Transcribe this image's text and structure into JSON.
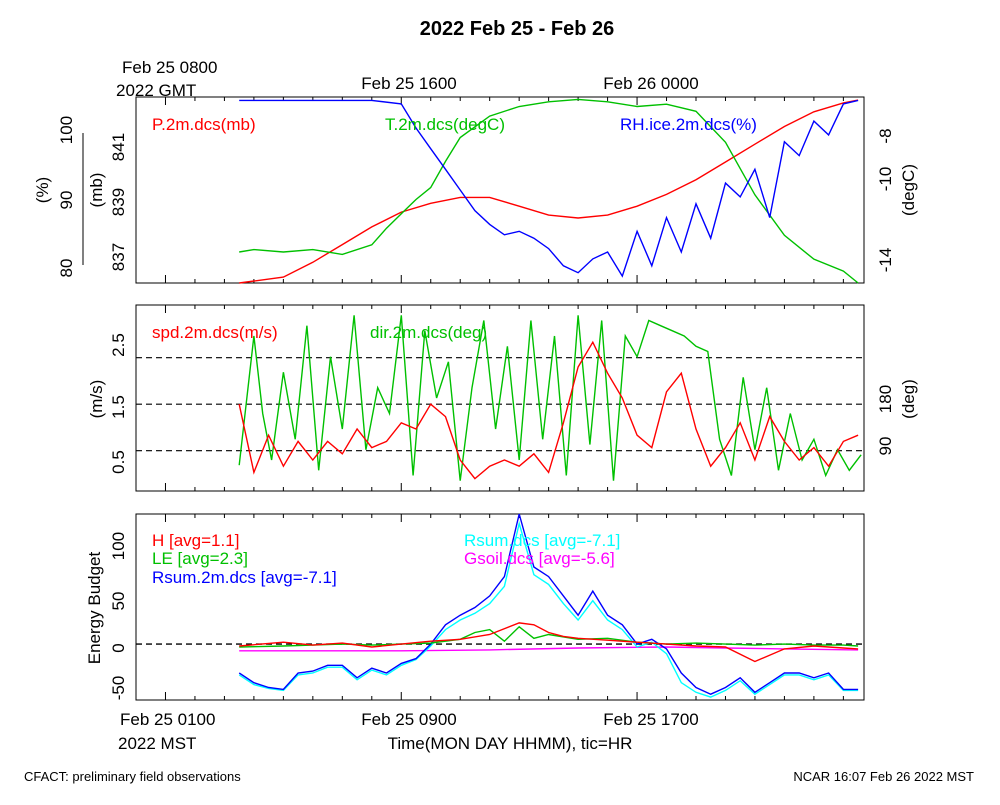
{
  "title": "2022 Feb 25 - Feb 26",
  "footer_left": "CFACT: preliminary field observations",
  "footer_right": "NCAR 16:07 Feb 26 2022 MST",
  "top_axis": {
    "first_label_line1": "Feb 25 0800",
    "first_label_line2": "2022 GMT",
    "labels": [
      "Feb 25 1600",
      "Feb 26 0000"
    ]
  },
  "bottom_axis": {
    "first_label_line1": "Feb 25 0100",
    "first_label_line2": "2022 MST",
    "labels": [
      "Feb 25 0900",
      "Feb 25 1700"
    ],
    "xlabel": "Time(MON DAY HHMM), tic=HR"
  },
  "colors": {
    "red": "#ff0000",
    "green": "#00c000",
    "blue": "#0000ff",
    "cyan": "#00ffff",
    "magenta": "#ff00ff",
    "black": "#000000"
  },
  "chart_data": [
    {
      "type": "line",
      "title": "",
      "x_unit": "hours since Feb 25 0000 MST",
      "xlim": [
        0,
        24.7
      ],
      "left_labels": {
        "pct": "(%)",
        "mb": "(mb)"
      },
      "right_label": "(degC)",
      "pct_ticks": [
        "100",
        "90",
        "80"
      ],
      "mb_ticks": [
        "841",
        "839",
        "837"
      ],
      "degc_ticks": [
        "-8",
        "-10",
        "-14"
      ],
      "ylim_pressure_mb": [
        836.5,
        842.8
      ],
      "ylim_temp_degC": [
        -14.5,
        -6.7
      ],
      "ylim_rh_pct": [
        79.5,
        106.5
      ],
      "series": [
        {
          "name": "P.2m.dcs(mb)",
          "color": "red",
          "x": [
            3.5,
            5,
            6,
            7,
            8,
            9,
            10,
            11,
            12,
            13,
            14,
            15,
            16,
            17,
            18,
            19,
            20,
            21,
            22,
            23,
            24,
            24.5
          ],
          "y": [
            836.4,
            836.7,
            837.2,
            837.8,
            838.4,
            838.9,
            839.2,
            839.4,
            839.4,
            839.1,
            838.8,
            838.7,
            838.8,
            839.1,
            839.5,
            840.0,
            840.6,
            841.2,
            841.8,
            842.3,
            842.6,
            842.7
          ]
        },
        {
          "name": "T.2m.dcs(degC)",
          "color": "green",
          "x": [
            3.5,
            4,
            5,
            6,
            7,
            8,
            8.5,
            9,
            9.5,
            10,
            10.5,
            11,
            12,
            13,
            14,
            15,
            16,
            17,
            18,
            19,
            20,
            21,
            22,
            23,
            24,
            24.5
          ],
          "y": [
            -13.2,
            -13.1,
            -13.2,
            -13.1,
            -13.3,
            -12.9,
            -12.2,
            -11.6,
            -11.0,
            -10.5,
            -9.4,
            -8.4,
            -7.5,
            -7.1,
            -6.9,
            -6.8,
            -6.9,
            -7.1,
            -7.0,
            -7.3,
            -8.6,
            -10.8,
            -12.5,
            -13.5,
            -14.0,
            -14.5
          ]
        },
        {
          "name": "RH.ice.2m.dcs(%)",
          "color": "blue",
          "x": [
            3.5,
            5,
            6,
            7,
            8,
            9,
            9.5,
            10,
            10.5,
            11,
            11.5,
            12,
            12.5,
            13,
            13.5,
            14,
            14.5,
            15,
            15.5,
            16,
            16.5,
            17,
            17.5,
            18,
            18.5,
            19,
            19.5,
            20,
            20.5,
            21,
            21.5,
            22,
            22.5,
            23,
            23.5,
            24,
            24.5
          ],
          "y": [
            106,
            106,
            106,
            106,
            106,
            105.5,
            102,
            99,
            96,
            93,
            90,
            88,
            86.5,
            87,
            86,
            84.5,
            82,
            81,
            83,
            84,
            80.5,
            87,
            82,
            89,
            84,
            91,
            86,
            94,
            92,
            96,
            89,
            100,
            98,
            103,
            101,
            105.5,
            106
          ]
        }
      ]
    },
    {
      "type": "line",
      "title": "",
      "x_unit": "hours since Feb 25 0000 MST",
      "xlim": [
        0,
        24.7
      ],
      "left_label": "(m/s)",
      "right_label": "(deg)",
      "speed_ticks": [
        "2.5",
        "1.5",
        "0.5"
      ],
      "dir_ticks": [
        "180",
        "90"
      ],
      "ylim_speed_ms": [
        0.1,
        3.1
      ],
      "ylim_dir_deg": [
        0,
        360
      ],
      "dashed_lines_speed_ms": [
        2.25,
        1.5,
        0.75
      ],
      "series": [
        {
          "name": "spd.2m.dcs(m/s)",
          "color": "red",
          "x": [
            3.5,
            4,
            4.5,
            5,
            5.5,
            6,
            6.5,
            7,
            7.5,
            8,
            8.5,
            9,
            9.5,
            10,
            10.5,
            11,
            11.5,
            12,
            12.5,
            13,
            13.5,
            14,
            14.5,
            15,
            15.5,
            16,
            16.5,
            17,
            17.5,
            18,
            18.5,
            19,
            19.5,
            20,
            20.5,
            21,
            21.5,
            22,
            22.5,
            23,
            23.5,
            24,
            24.5
          ],
          "y": [
            1.5,
            0.4,
            1.0,
            0.5,
            0.9,
            0.6,
            0.9,
            0.7,
            1.1,
            0.8,
            0.9,
            1.2,
            1.1,
            1.5,
            1.3,
            0.6,
            0.3,
            0.5,
            0.6,
            0.5,
            0.7,
            0.4,
            1.2,
            2.1,
            2.5,
            2.0,
            1.6,
            1.0,
            0.8,
            1.7,
            2.0,
            1.1,
            0.5,
            0.8,
            1.2,
            0.6,
            1.3,
            0.9,
            0.6,
            0.8,
            0.5,
            0.9,
            1.0
          ]
        },
        {
          "name": "dir.2m.dcs(deg)",
          "color": "green",
          "x": [
            3.5,
            4,
            4.3,
            4.6,
            5,
            5.4,
            5.8,
            6.2,
            6.6,
            7,
            7.4,
            7.8,
            8.2,
            8.6,
            9,
            9.4,
            9.8,
            10.2,
            10.6,
            11,
            11.4,
            11.8,
            12.2,
            12.6,
            13,
            13.4,
            13.8,
            14.2,
            14.6,
            15,
            15.4,
            15.8,
            16.2,
            16.6,
            17,
            17.4,
            17.8,
            18.2,
            18.6,
            19,
            19.4,
            19.8,
            20.2,
            20.6,
            21,
            21.4,
            21.8,
            22.2,
            22.6,
            23,
            23.4,
            23.8,
            24.2,
            24.6
          ],
          "y": [
            50,
            300,
            150,
            60,
            230,
            100,
            320,
            40,
            260,
            120,
            340,
            80,
            200,
            150,
            340,
            30,
            310,
            180,
            250,
            20,
            200,
            330,
            120,
            280,
            60,
            330,
            100,
            300,
            30,
            340,
            90,
            330,
            20,
            300,
            260,
            330,
            320,
            310,
            300,
            280,
            270,
            100,
            30,
            220,
            80,
            200,
            40,
            150,
            60,
            100,
            30,
            80,
            40,
            70
          ]
        }
      ]
    },
    {
      "type": "line",
      "title": "",
      "x_unit": "hours since Feb 25 0000 MST",
      "xlim": [
        0,
        24.7
      ],
      "ylabel": "Energy Budget",
      "yticks": [
        "100",
        "50",
        "0",
        "-50"
      ],
      "ylim": [
        -58,
        135
      ],
      "dashed_line_y": 0,
      "series": [
        {
          "name": "H",
          "legend": "H [avg=1.1]",
          "color": "red",
          "x": [
            3.5,
            5,
            6,
            7,
            8,
            9,
            10,
            11,
            12,
            13,
            13.5,
            14,
            14.5,
            15,
            16,
            17,
            18,
            19,
            20,
            21,
            22,
            23,
            24,
            24.5
          ],
          "y": [
            -2,
            2,
            -1,
            1,
            -3,
            0,
            3,
            5,
            10,
            22,
            20,
            12,
            8,
            6,
            4,
            2,
            0,
            -2,
            -3,
            -18,
            -5,
            -2,
            -4,
            -5
          ]
        },
        {
          "name": "LE",
          "legend": "LE [avg=2.3]",
          "color": "green",
          "x": [
            3.5,
            5,
            6,
            7,
            8,
            9,
            10,
            11,
            11.5,
            12,
            12.5,
            13,
            13.5,
            14,
            15,
            16,
            17,
            18,
            19,
            20,
            21,
            22,
            23,
            24,
            24.5
          ],
          "y": [
            -3,
            -2,
            -1,
            0,
            -1,
            0,
            1,
            5,
            12,
            15,
            3,
            18,
            6,
            10,
            5,
            6,
            2,
            0,
            1,
            0,
            -1,
            0,
            -1,
            -1,
            -2
          ]
        },
        {
          "name": "Rsum.2m.dcs",
          "legend": "Rsum.2m.dcs [avg=-7.1]",
          "color": "blue",
          "x": [
            3.5,
            4,
            4.5,
            5,
            5.5,
            6,
            6.5,
            7,
            7.5,
            8,
            8.5,
            9,
            9.5,
            10,
            10.5,
            11,
            11.5,
            12,
            12.5,
            13,
            13.5,
            14,
            14.5,
            15,
            15.5,
            16,
            16.5,
            17,
            17.5,
            18,
            18.5,
            19,
            19.5,
            20,
            20.5,
            21,
            21.5,
            22,
            22.5,
            23,
            23.5,
            24,
            24.5
          ],
          "y": [
            -30,
            -40,
            -45,
            -47,
            -30,
            -28,
            -22,
            -22,
            -35,
            -25,
            -30,
            -20,
            -15,
            0,
            20,
            30,
            38,
            50,
            70,
            135,
            80,
            70,
            50,
            30,
            55,
            30,
            20,
            0,
            5,
            -5,
            -30,
            -45,
            -52,
            -45,
            -35,
            -50,
            -40,
            -30,
            -30,
            -35,
            -30,
            -47,
            -47
          ]
        },
        {
          "name": "Rsum.dcs",
          "legend": "Rsum.dcs [avg=-7.1]",
          "color": "cyan",
          "x": [
            3.5,
            4,
            4.5,
            5,
            5.5,
            6,
            6.5,
            7,
            7.5,
            8,
            8.5,
            9,
            9.5,
            10,
            10.5,
            11,
            11.5,
            12,
            12.5,
            13,
            13.5,
            14,
            14.5,
            15,
            15.5,
            16,
            16.5,
            17,
            17.5,
            18,
            18.5,
            19,
            19.5,
            20,
            20.5,
            21,
            21.5,
            22,
            22.5,
            23,
            23.5,
            24,
            24.5
          ],
          "y": [
            -32,
            -42,
            -46,
            -48,
            -32,
            -30,
            -24,
            -24,
            -37,
            -27,
            -32,
            -22,
            -16,
            -2,
            15,
            25,
            32,
            42,
            60,
            125,
            72,
            62,
            42,
            25,
            45,
            25,
            15,
            -3,
            2,
            -10,
            -40,
            -50,
            -55,
            -48,
            -38,
            -52,
            -42,
            -32,
            -32,
            -37,
            -32,
            -48,
            -48
          ]
        },
        {
          "name": "Gsoil.dcs",
          "legend": "Gsoil.dcs [avg=-5.6]",
          "color": "magenta",
          "x": [
            3.5,
            6,
            9,
            12,
            15,
            18,
            20,
            22,
            24.5
          ],
          "y": [
            -7,
            -7,
            -7,
            -6,
            -4,
            -3,
            -4,
            -5,
            -6
          ]
        }
      ]
    }
  ]
}
